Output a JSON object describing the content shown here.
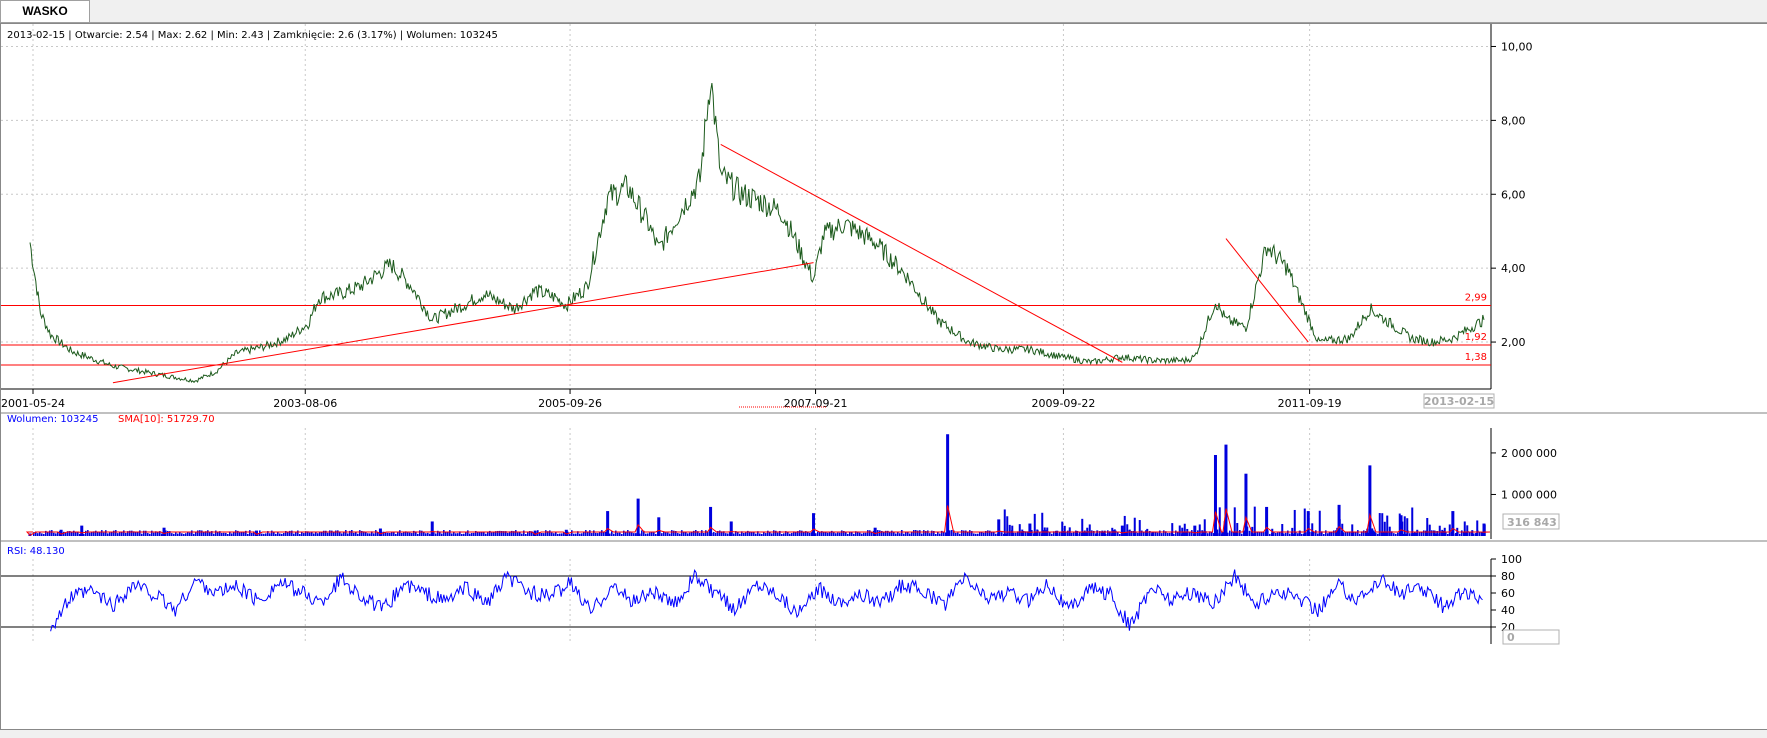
{
  "tab": {
    "label": "WASKO"
  },
  "header": {
    "date": "2013-02-15",
    "text": "2013-02-15 | Otwarcie: 2.54 | Max: 2.62 | Min: 2.43 | Zamknięcie: 2.6 (3.17%)  | Wolumen: 103245"
  },
  "price_panel": {
    "y_ticks": [
      "10,00",
      "8,00",
      "6,00",
      "4,00",
      "2,00"
    ],
    "x_ticks": [
      "2001-05-24",
      "2003-08-06",
      "2005-09-26",
      "2007-09-21",
      "2009-09-22",
      "2011-09-19"
    ],
    "current_date_label": "2013-02-15",
    "levels": [
      {
        "value": 2.99,
        "label": "2,99"
      },
      {
        "value": 1.92,
        "label": "1,92"
      },
      {
        "value": 1.38,
        "label": "1,38"
      }
    ]
  },
  "volume_panel": {
    "legend_volume": "Wolumen: 103245",
    "legend_sma": "SMA[10]: 51729.70",
    "y_ticks": [
      "2 000 000",
      "1 000 000"
    ],
    "value_box": "316 843"
  },
  "rsi_panel": {
    "legend": "RSI: 48.130",
    "y_ticks": [
      "100",
      "80",
      "60",
      "40",
      "20"
    ],
    "value_box": "0"
  },
  "colors": {
    "price": "#1c5a1c",
    "levels": "#ff0000",
    "volume": "#0000dd",
    "sma": "#ff0000",
    "rsi": "#0000ff",
    "grid": "#c8c8c8"
  },
  "chart_data": [
    {
      "type": "line",
      "x_start": "2001-05-24",
      "x_end": "2013-02-15",
      "ylim": [
        1,
        10.5
      ],
      "ylabel": "",
      "x": [
        "2001-05",
        "2001-06",
        "2001-07",
        "2001-09",
        "2001-11",
        "2002-01",
        "2002-04",
        "2002-07",
        "2002-09",
        "2002-11",
        "2003-01",
        "2003-04",
        "2003-06",
        "2003-08",
        "2003-09",
        "2003-11",
        "2004-01",
        "2004-04",
        "2004-06",
        "2004-08",
        "2004-11",
        "2005-01",
        "2005-04",
        "2005-06",
        "2005-08",
        "2005-09",
        "2005-11",
        "2006-01",
        "2006-03",
        "2006-05",
        "2006-06",
        "2006-08",
        "2006-10",
        "2006-11",
        "2006-12",
        "2007-02",
        "2007-04",
        "2007-06",
        "2007-09",
        "2007-10",
        "2007-12",
        "2008-03",
        "2008-06",
        "2008-09",
        "2008-12",
        "2009-03",
        "2009-06",
        "2009-09",
        "2009-12",
        "2010-03",
        "2010-06",
        "2010-09",
        "2010-10",
        "2010-12",
        "2011-01",
        "2011-03",
        "2011-05",
        "2011-07",
        "2011-08",
        "2011-10",
        "2012-01",
        "2012-03",
        "2012-05",
        "2012-07",
        "2012-09",
        "2012-11",
        "2013-02"
      ],
      "series": [
        {
          "values": [
            4.7,
            2.8,
            2.2,
            1.75,
            1.55,
            1.35,
            1.2,
            1.05,
            0.95,
            1.2,
            1.7,
            1.9,
            2.1,
            2.5,
            3.2,
            3.3,
            3.5,
            4.1,
            3.5,
            2.6,
            3.0,
            3.3,
            2.9,
            3.4,
            3.2,
            3.0,
            3.5,
            5.9,
            6.2,
            5.2,
            4.5,
            5.5,
            6.4,
            9.2,
            6.5,
            6.0,
            5.8,
            5.5,
            3.7,
            4.9,
            5.2,
            4.7,
            3.8,
            2.6,
            2.0,
            1.8,
            1.8,
            1.6,
            1.45,
            1.6,
            1.5,
            1.5,
            1.6,
            3.1,
            2.6,
            2.4,
            4.6,
            4.0,
            3.3,
            2.0,
            2.1,
            2.9,
            2.5,
            2.1,
            2.0,
            2.1,
            2.6
          ]
        }
      ],
      "trendlines": [
        {
          "from": [
            "2002-01",
            0.9
          ],
          "to": [
            "2007-09",
            4.15
          ]
        },
        {
          "from": [
            "2006-12",
            7.35
          ],
          "to": [
            "2010-03",
            1.45
          ]
        },
        {
          "from": [
            "2011-01",
            4.8
          ],
          "to": [
            "2011-09",
            2.0
          ]
        }
      ]
    },
    {
      "type": "bar",
      "title": "",
      "ylim": [
        0,
        2600000
      ],
      "series": [
        {
          "name": "Wolumen",
          "spikes": [
            {
              "x": "2001-05",
              "v": 60000
            },
            {
              "x": "2001-08",
              "v": 150000
            },
            {
              "x": "2001-10",
              "v": 250000
            },
            {
              "x": "2002-06",
              "v": 200000
            },
            {
              "x": "2003-03",
              "v": 130000
            },
            {
              "x": "2004-03",
              "v": 180000
            },
            {
              "x": "2004-08",
              "v": 350000
            },
            {
              "x": "2005-06",
              "v": 130000
            },
            {
              "x": "2005-09",
              "v": 150000
            },
            {
              "x": "2006-01",
              "v": 600000
            },
            {
              "x": "2006-04",
              "v": 900000
            },
            {
              "x": "2006-06",
              "v": 450000
            },
            {
              "x": "2006-11",
              "v": 700000
            },
            {
              "x": "2007-01",
              "v": 350000
            },
            {
              "x": "2007-09",
              "v": 550000
            },
            {
              "x": "2008-03",
              "v": 200000
            },
            {
              "x": "2008-10",
              "v": 2450000
            },
            {
              "x": "2009-03",
              "v": 400000
            },
            {
              "x": "2009-06",
              "v": 300000
            },
            {
              "x": "2010-03",
              "v": 250000
            },
            {
              "x": "2010-10",
              "v": 250000
            },
            {
              "x": "2010-12",
              "v": 1950000
            },
            {
              "x": "2011-01",
              "v": 2200000
            },
            {
              "x": "2011-03",
              "v": 1500000
            },
            {
              "x": "2011-05",
              "v": 700000
            },
            {
              "x": "2011-09",
              "v": 600000
            },
            {
              "x": "2011-12",
              "v": 750000
            },
            {
              "x": "2012-03",
              "v": 1700000
            },
            {
              "x": "2012-06",
              "v": 500000
            },
            {
              "x": "2012-11",
              "v": 600000
            },
            {
              "x": "2013-02",
              "v": 300000
            }
          ]
        },
        {
          "name": "SMA[10]",
          "type": "line"
        }
      ]
    },
    {
      "type": "line",
      "title": "",
      "ylim": [
        0,
        100
      ],
      "hlines": [
        80,
        20
      ],
      "series": [
        {
          "name": "RSI",
          "values": [
            20,
            55,
            62,
            45,
            70,
            58,
            40,
            75,
            60,
            68,
            50,
            72,
            62,
            48,
            78,
            55,
            40,
            70,
            60,
            50,
            66,
            48,
            78,
            62,
            55,
            72,
            38,
            68,
            50,
            62,
            45,
            80,
            58,
            42,
            72,
            60,
            35,
            65,
            50,
            58,
            48,
            70,
            62,
            45,
            78,
            55,
            60,
            50,
            73,
            40,
            66,
            58,
            20,
            68,
            52,
            60,
            48,
            80,
            45,
            62,
            55,
            40,
            70,
            50,
            78,
            60,
            66,
            45,
            62,
            48
          ]
        }
      ]
    }
  ]
}
